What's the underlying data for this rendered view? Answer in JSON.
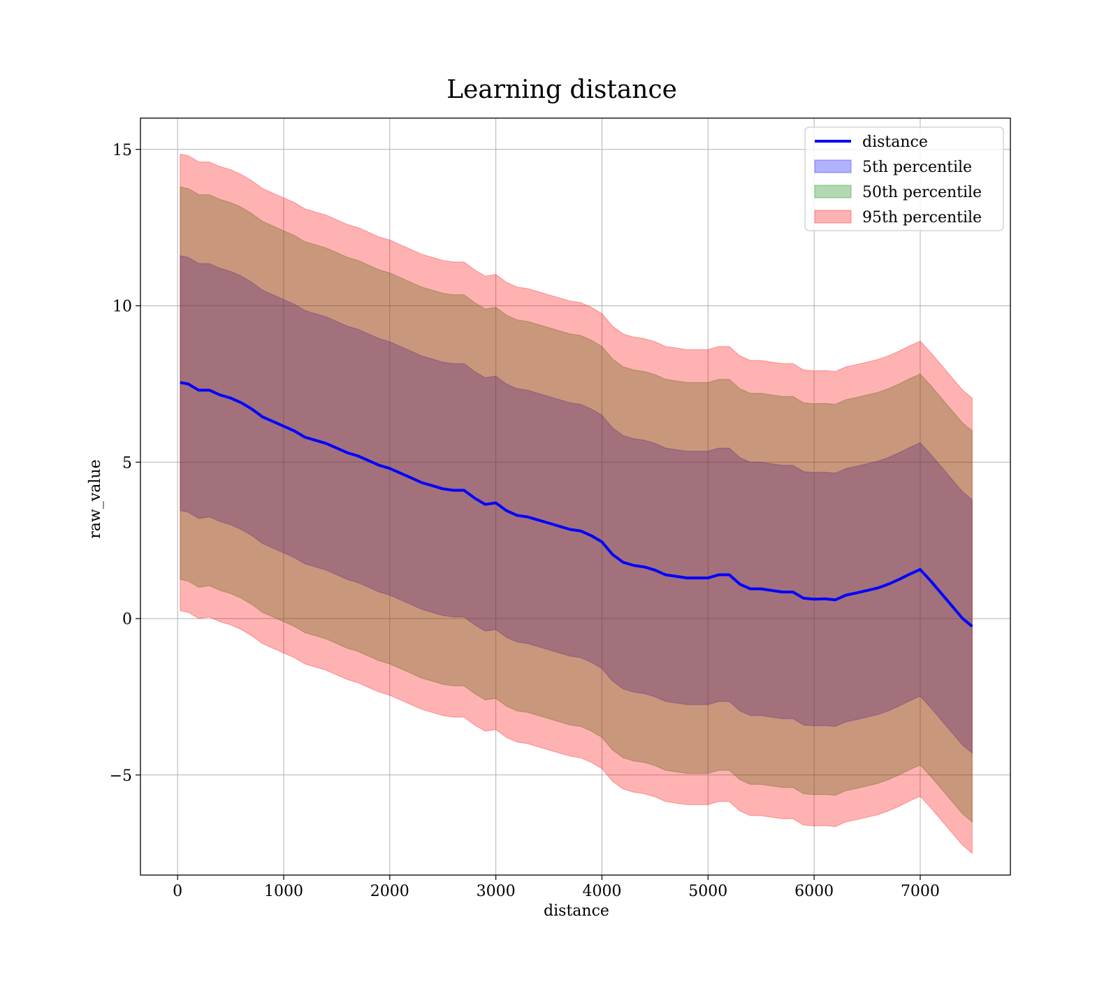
{
  "chart_data": {
    "type": "area",
    "title": "Learning distance",
    "xlabel": "distance",
    "ylabel": "raw_value",
    "xlim": [
      -350,
      7850
    ],
    "ylim": [
      -8.2,
      16.0
    ],
    "xticks": [
      0,
      1000,
      2000,
      3000,
      4000,
      5000,
      6000,
      7000
    ],
    "xtick_labels": [
      "0",
      "1000",
      "2000",
      "3000",
      "4000",
      "5000",
      "6000",
      "7000"
    ],
    "yticks": [
      -5,
      0,
      5,
      10,
      15
    ],
    "ytick_labels": [
      "−5",
      "0",
      "5",
      "10",
      "15"
    ],
    "grid": true,
    "legend_position": "top-right",
    "x": [
      25,
      100,
      200,
      300,
      400,
      500,
      600,
      700,
      800,
      900,
      1000,
      1100,
      1200,
      1300,
      1400,
      1500,
      1600,
      1700,
      1800,
      1900,
      2000,
      2100,
      2200,
      2300,
      2400,
      2500,
      2600,
      2700,
      2800,
      2900,
      3000,
      3100,
      3200,
      3300,
      3400,
      3500,
      3600,
      3700,
      3800,
      3900,
      4000,
      4100,
      4200,
      4300,
      4400,
      4500,
      4600,
      4700,
      4800,
      4900,
      5000,
      5100,
      5200,
      5300,
      5400,
      5500,
      5600,
      5700,
      5800,
      5900,
      6000,
      6100,
      6200,
      6300,
      6400,
      6500,
      6600,
      6700,
      6800,
      6900,
      7000,
      7100,
      7200,
      7300,
      7400,
      7490
    ],
    "series": [
      {
        "name": "distance",
        "kind": "line",
        "color": "#0000ff",
        "values": [
          7.55,
          7.5,
          7.3,
          7.3,
          7.15,
          7.05,
          6.9,
          6.7,
          6.45,
          6.3,
          6.15,
          6.0,
          5.8,
          5.7,
          5.6,
          5.45,
          5.3,
          5.2,
          5.05,
          4.9,
          4.8,
          4.65,
          4.5,
          4.35,
          4.25,
          4.15,
          4.1,
          4.1,
          3.85,
          3.65,
          3.7,
          3.45,
          3.3,
          3.25,
          3.15,
          3.05,
          2.95,
          2.85,
          2.8,
          2.65,
          2.45,
          2.05,
          1.8,
          1.7,
          1.65,
          1.55,
          1.4,
          1.35,
          1.3,
          1.3,
          1.3,
          1.4,
          1.4,
          1.1,
          0.95,
          0.95,
          0.9,
          0.85,
          0.85,
          0.65,
          0.62,
          0.63,
          0.6,
          0.75,
          0.82,
          0.9,
          0.98,
          1.1,
          1.25,
          1.42,
          1.57,
          1.2,
          0.8,
          0.4,
          0.0,
          -0.25
        ]
      },
      {
        "name": "5th percentile",
        "kind": "band",
        "color": "#0000ff",
        "opacity": 0.3,
        "lower": [
          3.45,
          3.4,
          3.2,
          3.25,
          3.1,
          3.0,
          2.85,
          2.65,
          2.4,
          2.25,
          2.1,
          1.95,
          1.75,
          1.65,
          1.55,
          1.4,
          1.25,
          1.15,
          1.0,
          0.85,
          0.75,
          0.6,
          0.45,
          0.3,
          0.2,
          0.1,
          0.05,
          0.05,
          -0.2,
          -0.4,
          -0.35,
          -0.6,
          -0.75,
          -0.8,
          -0.9,
          -1.0,
          -1.1,
          -1.2,
          -1.25,
          -1.4,
          -1.6,
          -2.0,
          -2.25,
          -2.35,
          -2.4,
          -2.5,
          -2.65,
          -2.7,
          -2.75,
          -2.75,
          -2.75,
          -2.65,
          -2.65,
          -2.95,
          -3.1,
          -3.1,
          -3.15,
          -3.2,
          -3.2,
          -3.4,
          -3.43,
          -3.42,
          -3.45,
          -3.3,
          -3.23,
          -3.15,
          -3.07,
          -2.95,
          -2.8,
          -2.63,
          -2.48,
          -2.85,
          -3.25,
          -3.65,
          -4.05,
          -4.3
        ],
        "upper": [
          11.6,
          11.55,
          11.35,
          11.35,
          11.2,
          11.1,
          10.95,
          10.75,
          10.5,
          10.35,
          10.2,
          10.05,
          9.85,
          9.75,
          9.65,
          9.5,
          9.35,
          9.25,
          9.1,
          8.95,
          8.85,
          8.7,
          8.55,
          8.4,
          8.3,
          8.2,
          8.15,
          8.15,
          7.9,
          7.7,
          7.75,
          7.5,
          7.35,
          7.3,
          7.2,
          7.1,
          7.0,
          6.9,
          6.85,
          6.7,
          6.5,
          6.1,
          5.85,
          5.75,
          5.7,
          5.6,
          5.45,
          5.4,
          5.35,
          5.35,
          5.35,
          5.45,
          5.45,
          5.15,
          5.0,
          5.0,
          4.95,
          4.9,
          4.9,
          4.7,
          4.67,
          4.68,
          4.65,
          4.8,
          4.87,
          4.95,
          5.03,
          5.15,
          5.3,
          5.47,
          5.62,
          5.25,
          4.85,
          4.45,
          4.05,
          3.8
        ]
      },
      {
        "name": "50th percentile",
        "kind": "band",
        "color": "#008000",
        "opacity": 0.3,
        "lower": [
          1.25,
          1.2,
          1.0,
          1.05,
          0.9,
          0.8,
          0.65,
          0.45,
          0.2,
          0.05,
          -0.1,
          -0.25,
          -0.45,
          -0.55,
          -0.65,
          -0.8,
          -0.95,
          -1.05,
          -1.2,
          -1.35,
          -1.45,
          -1.6,
          -1.75,
          -1.9,
          -2.0,
          -2.1,
          -2.15,
          -2.15,
          -2.4,
          -2.6,
          -2.55,
          -2.8,
          -2.95,
          -3.0,
          -3.1,
          -3.2,
          -3.3,
          -3.4,
          -3.45,
          -3.6,
          -3.8,
          -4.2,
          -4.45,
          -4.55,
          -4.6,
          -4.7,
          -4.85,
          -4.9,
          -4.95,
          -4.95,
          -4.95,
          -4.85,
          -4.85,
          -5.15,
          -5.3,
          -5.3,
          -5.35,
          -5.4,
          -5.4,
          -5.6,
          -5.63,
          -5.62,
          -5.65,
          -5.5,
          -5.43,
          -5.35,
          -5.27,
          -5.15,
          -5.0,
          -4.83,
          -4.68,
          -5.05,
          -5.45,
          -5.85,
          -6.25,
          -6.5
        ],
        "upper": [
          13.8,
          13.75,
          13.55,
          13.55,
          13.4,
          13.3,
          13.15,
          12.95,
          12.7,
          12.55,
          12.4,
          12.25,
          12.05,
          11.95,
          11.85,
          11.7,
          11.55,
          11.45,
          11.3,
          11.15,
          11.05,
          10.9,
          10.75,
          10.6,
          10.5,
          10.4,
          10.35,
          10.35,
          10.1,
          9.9,
          9.95,
          9.7,
          9.55,
          9.5,
          9.4,
          9.3,
          9.2,
          9.1,
          9.05,
          8.9,
          8.7,
          8.3,
          8.05,
          7.95,
          7.9,
          7.8,
          7.65,
          7.6,
          7.55,
          7.55,
          7.55,
          7.65,
          7.65,
          7.35,
          7.2,
          7.2,
          7.15,
          7.1,
          7.1,
          6.9,
          6.87,
          6.88,
          6.85,
          7.0,
          7.07,
          7.15,
          7.23,
          7.35,
          7.5,
          7.67,
          7.82,
          7.45,
          7.05,
          6.65,
          6.25,
          6.0
        ]
      },
      {
        "name": "95th percentile",
        "kind": "band",
        "color": "#ff0000",
        "opacity": 0.3,
        "lower": [
          0.25,
          0.2,
          0.0,
          0.05,
          -0.1,
          -0.2,
          -0.35,
          -0.55,
          -0.8,
          -0.95,
          -1.1,
          -1.25,
          -1.45,
          -1.55,
          -1.65,
          -1.8,
          -1.95,
          -2.05,
          -2.2,
          -2.35,
          -2.45,
          -2.6,
          -2.75,
          -2.9,
          -3.0,
          -3.1,
          -3.15,
          -3.15,
          -3.4,
          -3.6,
          -3.55,
          -3.8,
          -3.95,
          -4.0,
          -4.1,
          -4.2,
          -4.3,
          -4.4,
          -4.45,
          -4.6,
          -4.8,
          -5.2,
          -5.45,
          -5.55,
          -5.6,
          -5.7,
          -5.85,
          -5.9,
          -5.95,
          -5.95,
          -5.95,
          -5.85,
          -5.85,
          -6.15,
          -6.3,
          -6.3,
          -6.35,
          -6.4,
          -6.4,
          -6.6,
          -6.63,
          -6.62,
          -6.65,
          -6.5,
          -6.43,
          -6.35,
          -6.27,
          -6.15,
          -6.0,
          -5.83,
          -5.68,
          -6.05,
          -6.45,
          -6.85,
          -7.25,
          -7.5
        ],
        "upper": [
          14.85,
          14.8,
          14.6,
          14.6,
          14.45,
          14.35,
          14.2,
          14.0,
          13.75,
          13.6,
          13.45,
          13.3,
          13.1,
          13.0,
          12.9,
          12.75,
          12.6,
          12.5,
          12.35,
          12.2,
          12.1,
          11.95,
          11.8,
          11.65,
          11.55,
          11.45,
          11.4,
          11.4,
          11.15,
          10.95,
          11.0,
          10.75,
          10.6,
          10.55,
          10.45,
          10.35,
          10.25,
          10.15,
          10.1,
          9.95,
          9.75,
          9.35,
          9.1,
          9.0,
          8.95,
          8.85,
          8.7,
          8.65,
          8.6,
          8.6,
          8.6,
          8.7,
          8.7,
          8.4,
          8.25,
          8.25,
          8.2,
          8.15,
          8.15,
          7.95,
          7.92,
          7.93,
          7.9,
          8.05,
          8.12,
          8.2,
          8.28,
          8.4,
          8.55,
          8.72,
          8.87,
          8.5,
          8.1,
          7.7,
          7.3,
          7.05
        ]
      }
    ]
  }
}
